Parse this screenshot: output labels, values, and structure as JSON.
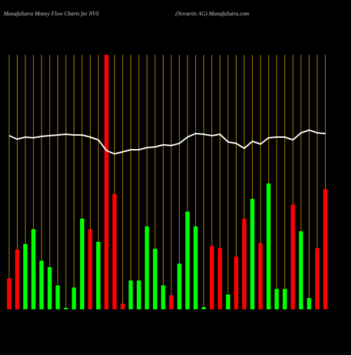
{
  "chart_data": {
    "type": "bar",
    "title": "MunafaSutra  Money Flow  Charts for NVS",
    "subtitle": "(Novartis AG) MunafaSutra.com",
    "ylim": [
      0,
      362
    ],
    "values": [
      44,
      85,
      93,
      114,
      69,
      60,
      34,
      2,
      31,
      129,
      114,
      96,
      362,
      164,
      8,
      41,
      41,
      118,
      86,
      34,
      20,
      65,
      139,
      118,
      3,
      90,
      87,
      21,
      75,
      129,
      157,
      94,
      179,
      29,
      29,
      149,
      111,
      16,
      87,
      171
    ],
    "colors": [
      "#ff0000",
      "#ff0000",
      "#00ff00",
      "#00ff00",
      "#00ff00",
      "#00ff00",
      "#00ff00",
      "#00ff00",
      "#00ff00",
      "#00ff00",
      "#ff0000",
      "#00ff00",
      "#ff0000",
      "#ff0000",
      "#ff0000",
      "#00ff00",
      "#00ff00",
      "#00ff00",
      "#00ff00",
      "#00ff00",
      "#ff0000",
      "#00ff00",
      "#00ff00",
      "#00ff00",
      "#00ff00",
      "#ff0000",
      "#ff0000",
      "#00ff00",
      "#ff0000",
      "#ff0000",
      "#00ff00",
      "#ff0000",
      "#00ff00",
      "#00ff00",
      "#00ff00",
      "#ff0000",
      "#00ff00",
      "#00ff00",
      "#ff0000",
      "#ff0000"
    ],
    "line": {
      "color": "#ffffff",
      "values": [
        247,
        242,
        245,
        244,
        246,
        247,
        248,
        249,
        248,
        248,
        245,
        241,
        226,
        221,
        224,
        227,
        227,
        230,
        231,
        234,
        233,
        236,
        245,
        250,
        249,
        247,
        249,
        238,
        236,
        229,
        239,
        235,
        244,
        245,
        245,
        241,
        251,
        255,
        251,
        250
      ]
    },
    "grid_color": "#b8860b"
  }
}
